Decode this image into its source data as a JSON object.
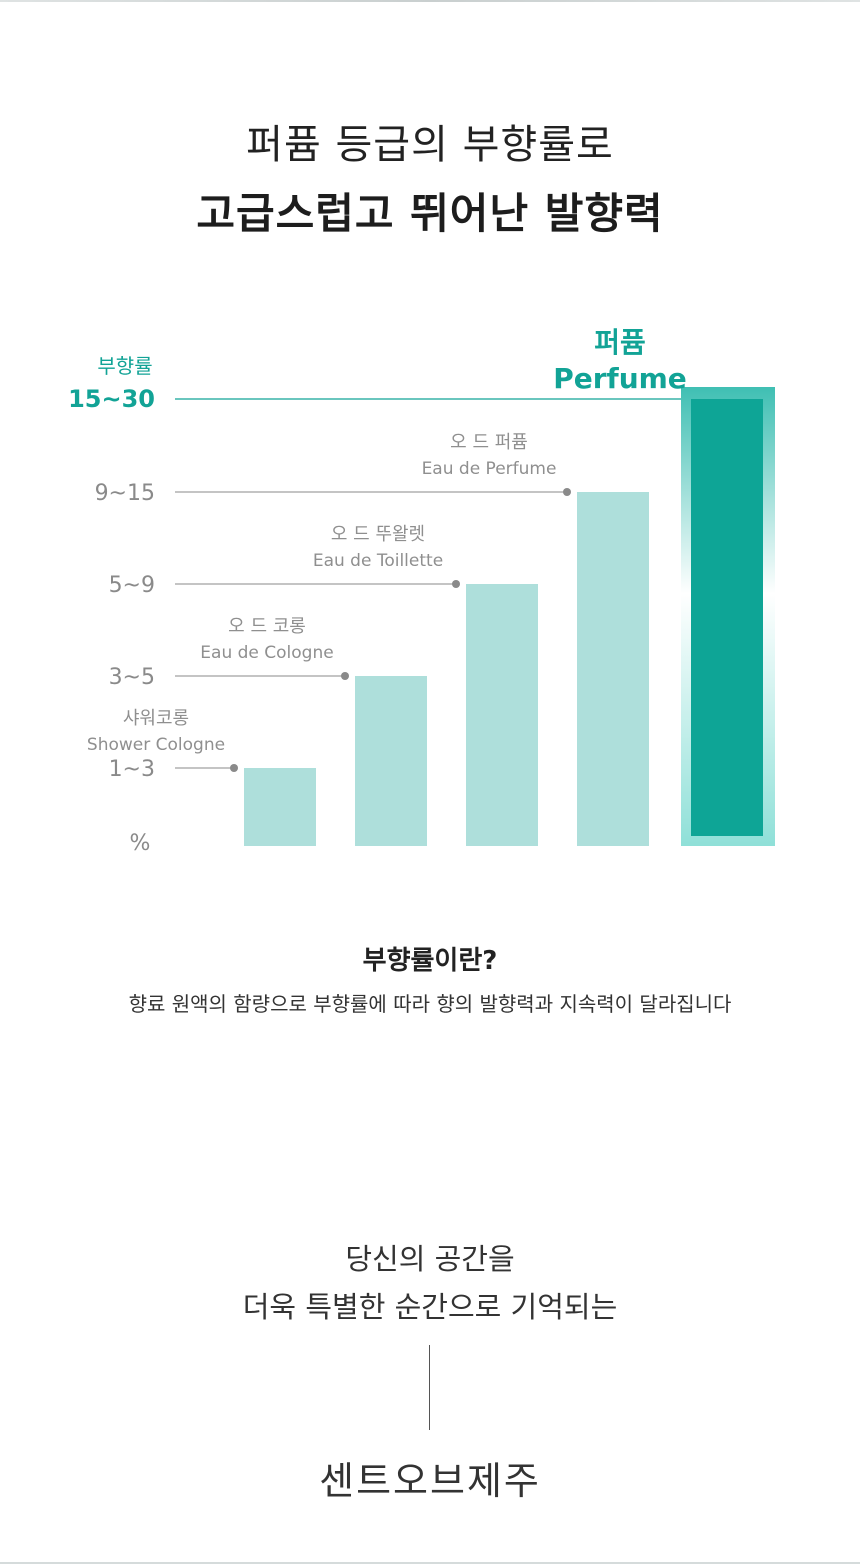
{
  "headline": {
    "line1": "퍼퓸 등급의 부향률로",
    "line2": "고급스럽고 뛰어난 발향력"
  },
  "chart_data": {
    "type": "bar",
    "ylabel": "부향률",
    "unit_label": "%",
    "ticks": [
      "1~3",
      "3~5",
      "5~9",
      "9~15",
      "15~30"
    ],
    "categories": [
      {
        "ko": "샤워코롱",
        "en": "Shower Cologne",
        "range": "1~3",
        "level": 1
      },
      {
        "ko": "오 드 코롱",
        "en": "Eau de Cologne",
        "range": "3~5",
        "level": 2
      },
      {
        "ko": "오 드 뚜왈렛",
        "en": "Eau de Toillette",
        "range": "5~9",
        "level": 3
      },
      {
        "ko": "오 드 퍼퓸",
        "en": "Eau de Perfume",
        "range": "9~15",
        "level": 4
      },
      {
        "ko": "퍼퓸",
        "en": "Perfume",
        "range": "15~30",
        "level": 5
      }
    ],
    "highlight_index": 4,
    "colors": {
      "bar": "#aedfdb",
      "highlight": "#0ea596",
      "highlight_glow": "#7fd9d0",
      "accent": "#12a396",
      "guide": "#8a8a8a"
    }
  },
  "explain": {
    "title": "부향률이란?",
    "desc": "향료 원액의 함량으로 부향률에 따라 향의 발향력과 지속력이 달라집니다"
  },
  "slogan": {
    "line1": "당신의 공간을",
    "line2": "더욱 특별한 순간으로 기억되는"
  },
  "brand": "센트오브제주"
}
